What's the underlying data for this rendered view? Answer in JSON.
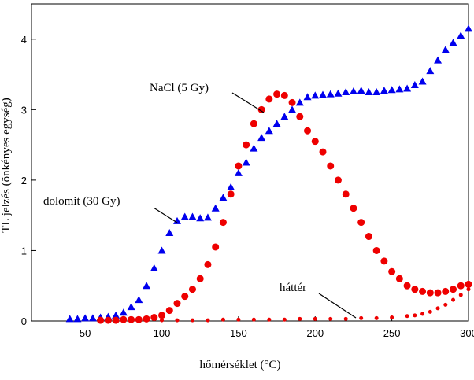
{
  "chart_data": {
    "type": "scatter",
    "xlabel": "hőmérséklet (°C)",
    "ylabel": "TL jelzés (önkényes egység)",
    "xlim": [
      15,
      300
    ],
    "ylim": [
      0,
      4.5
    ],
    "xticks": [
      50,
      100,
      150,
      200,
      250,
      300
    ],
    "yticks": [
      0,
      1,
      2,
      3,
      4
    ],
    "series": [
      {
        "name": "dolomit (30 Gy)",
        "color": "#0000ee",
        "marker": "triangle",
        "x": [
          40,
          45,
          50,
          55,
          60,
          65,
          70,
          75,
          80,
          85,
          90,
          95,
          100,
          105,
          110,
          115,
          120,
          125,
          130,
          135,
          140,
          145,
          150,
          155,
          160,
          165,
          170,
          175,
          180,
          185,
          190,
          195,
          200,
          205,
          210,
          215,
          220,
          225,
          230,
          235,
          240,
          245,
          250,
          255,
          260,
          265,
          270,
          275,
          280,
          285,
          290,
          295,
          300
        ],
        "values": [
          0.03,
          0.03,
          0.04,
          0.04,
          0.05,
          0.06,
          0.08,
          0.12,
          0.2,
          0.3,
          0.5,
          0.75,
          1.0,
          1.25,
          1.42,
          1.48,
          1.48,
          1.46,
          1.47,
          1.6,
          1.75,
          1.9,
          2.1,
          2.25,
          2.45,
          2.6,
          2.7,
          2.8,
          2.9,
          3.0,
          3.1,
          3.18,
          3.2,
          3.21,
          3.22,
          3.23,
          3.25,
          3.26,
          3.27,
          3.25,
          3.25,
          3.27,
          3.28,
          3.29,
          3.3,
          3.35,
          3.4,
          3.55,
          3.7,
          3.85,
          3.95,
          4.05,
          4.15
        ]
      },
      {
        "name": "NaCl (5 Gy)",
        "color": "#ee0000",
        "marker": "circle",
        "x": [
          60,
          65,
          70,
          75,
          80,
          85,
          90,
          95,
          100,
          105,
          110,
          115,
          120,
          125,
          130,
          135,
          140,
          145,
          150,
          155,
          160,
          165,
          170,
          175,
          180,
          185,
          190,
          195,
          200,
          205,
          210,
          215,
          220,
          225,
          230,
          235,
          240,
          245,
          250,
          255,
          260,
          265,
          270,
          275,
          280,
          285,
          290,
          295,
          300
        ],
        "values": [
          0.01,
          0.01,
          0.01,
          0.02,
          0.02,
          0.02,
          0.03,
          0.05,
          0.08,
          0.15,
          0.25,
          0.35,
          0.45,
          0.6,
          0.8,
          1.05,
          1.4,
          1.8,
          2.2,
          2.5,
          2.8,
          3.0,
          3.15,
          3.22,
          3.2,
          3.1,
          2.9,
          2.7,
          2.55,
          2.4,
          2.2,
          2.0,
          1.8,
          1.6,
          1.4,
          1.2,
          1.0,
          0.85,
          0.7,
          0.6,
          0.5,
          0.45,
          0.42,
          0.4,
          0.4,
          0.42,
          0.45,
          0.5,
          0.52
        ]
      },
      {
        "name": "háttér",
        "color": "#ee0000",
        "marker": "small-circle",
        "x": [
          100,
          110,
          120,
          130,
          140,
          150,
          160,
          170,
          180,
          190,
          200,
          210,
          220,
          230,
          240,
          250,
          260,
          265,
          270,
          275,
          280,
          285,
          290,
          295,
          300
        ],
        "values": [
          0.01,
          0.01,
          0.01,
          0.01,
          0.02,
          0.02,
          0.02,
          0.02,
          0.02,
          0.03,
          0.03,
          0.03,
          0.03,
          0.04,
          0.04,
          0.05,
          0.07,
          0.08,
          0.1,
          0.13,
          0.18,
          0.23,
          0.3,
          0.37,
          0.45
        ]
      }
    ]
  }
}
